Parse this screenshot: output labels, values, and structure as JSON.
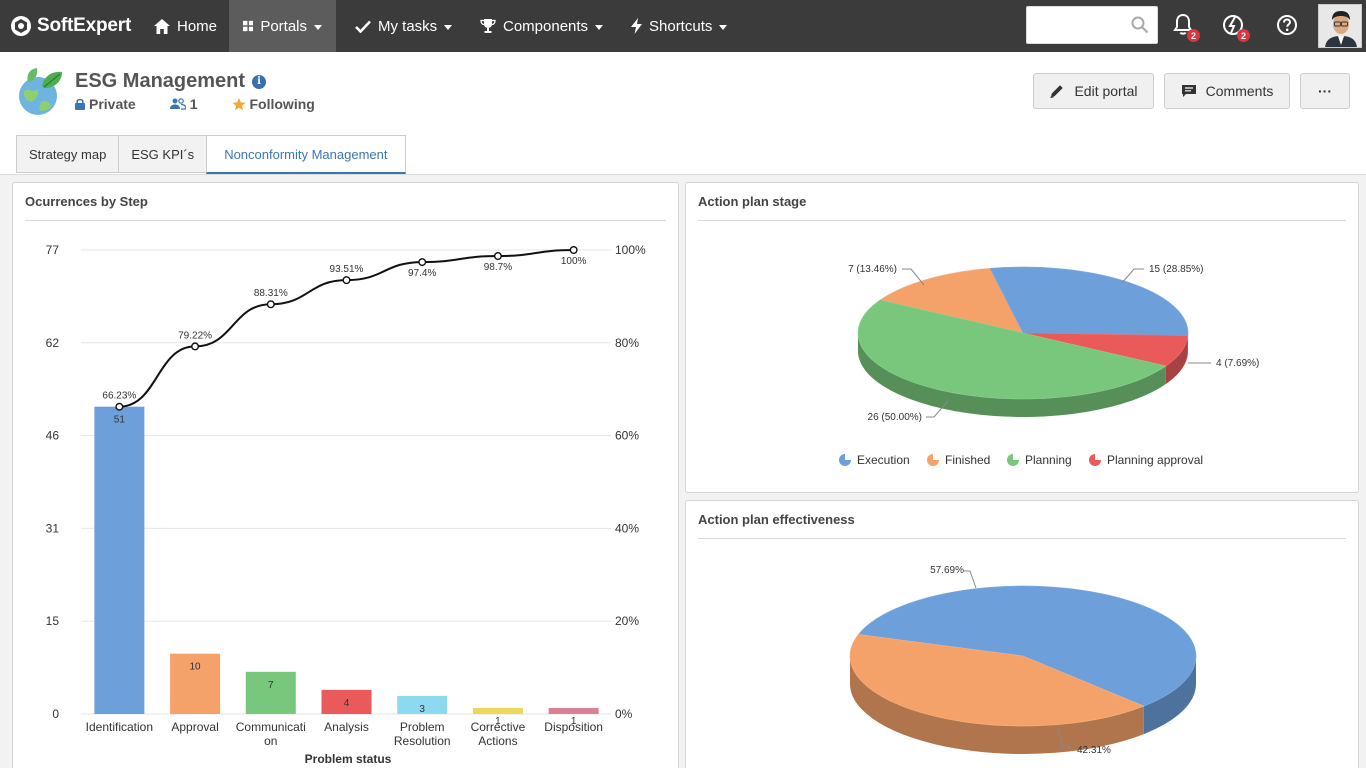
{
  "nav": {
    "logo": "SoftExpert",
    "items": [
      {
        "label": "Home",
        "icon": "home-icon"
      },
      {
        "label": "Portals",
        "icon": "grid-icon"
      },
      {
        "label": "My tasks",
        "icon": "check-icon"
      },
      {
        "label": "Components",
        "icon": "trophy-icon"
      },
      {
        "label": "Shortcuts",
        "icon": "lightning-icon"
      }
    ],
    "search_placeholder": "",
    "notifications_count": "2",
    "activity_count": "2"
  },
  "portal": {
    "title": "ESG Management",
    "info_icon": "i",
    "privacy": "Private",
    "members": "1",
    "following": "Following",
    "buttons": {
      "edit": "Edit portal",
      "comments": "Comments",
      "more": "···"
    }
  },
  "tabs": [
    {
      "label": "Strategy map",
      "active": false
    },
    {
      "label": "ESG KPI´s",
      "active": false
    },
    {
      "label": "Nonconformity Management",
      "active": true
    }
  ],
  "colors": {
    "blue": "#6d9fdb",
    "orange": "#f5a26a",
    "green": "#79c77c",
    "red": "#ea5a5a",
    "cyan": "#8dd9ef",
    "yellow": "#ecd85a",
    "pink": "#d98296",
    "nav_bg": "#3b3b3b",
    "accent": "#3a76b5"
  },
  "panels": {
    "pareto_title": "Ocurrences by Step",
    "stage_title": "Action plan stage",
    "effectiveness_title": "Action plan effectiveness"
  },
  "chart_data": [
    {
      "type": "bar",
      "title": "Ocurrences by Step",
      "xlabel": "Problem status",
      "categories": [
        "Identification",
        "Approval",
        "Communication",
        "Analysis",
        "Problem Resolution",
        "Corrective Actions",
        "Disposition"
      ],
      "category_labels": [
        [
          "Identification"
        ],
        [
          "Approval"
        ],
        [
          "Communicati",
          "on"
        ],
        [
          "Analysis"
        ],
        [
          "Problem",
          "Resolution"
        ],
        [
          "Corrective",
          "Actions"
        ],
        [
          "Disposition"
        ]
      ],
      "values": [
        51,
        10,
        7,
        4,
        3,
        1,
        1
      ],
      "cumulative_percent": [
        66.23,
        79.22,
        88.31,
        93.51,
        97.4,
        98.7,
        100
      ],
      "cumulative_labels": [
        "66.23%",
        "79.22%",
        "88.31%",
        "93.51%",
        "97.4%",
        "98.7%",
        "100%"
      ],
      "y_ticks": [
        0,
        15,
        31,
        46,
        62,
        77
      ],
      "y2_ticks": [
        "0%",
        "20%",
        "40%",
        "60%",
        "80%",
        "100%"
      ],
      "ylim": [
        0,
        77
      ],
      "y2lim": [
        0,
        100
      ],
      "grid": true
    },
    {
      "type": "pie",
      "title": "Action plan stage",
      "labels": [
        "Execution",
        "Finished",
        "Planning",
        "Planning approval"
      ],
      "values": [
        15,
        7,
        26,
        4
      ],
      "value_labels": [
        "15 (28.85%)",
        "7 (13.46%)",
        "26 (50.00%)",
        "4 (7.69%)"
      ],
      "legend": "bottom"
    },
    {
      "type": "pie",
      "title": "Action plan effectiveness",
      "labels": [
        "",
        ""
      ],
      "values": [
        57.69,
        42.31
      ],
      "value_labels": [
        "57.69%",
        "42.31%"
      ]
    }
  ]
}
